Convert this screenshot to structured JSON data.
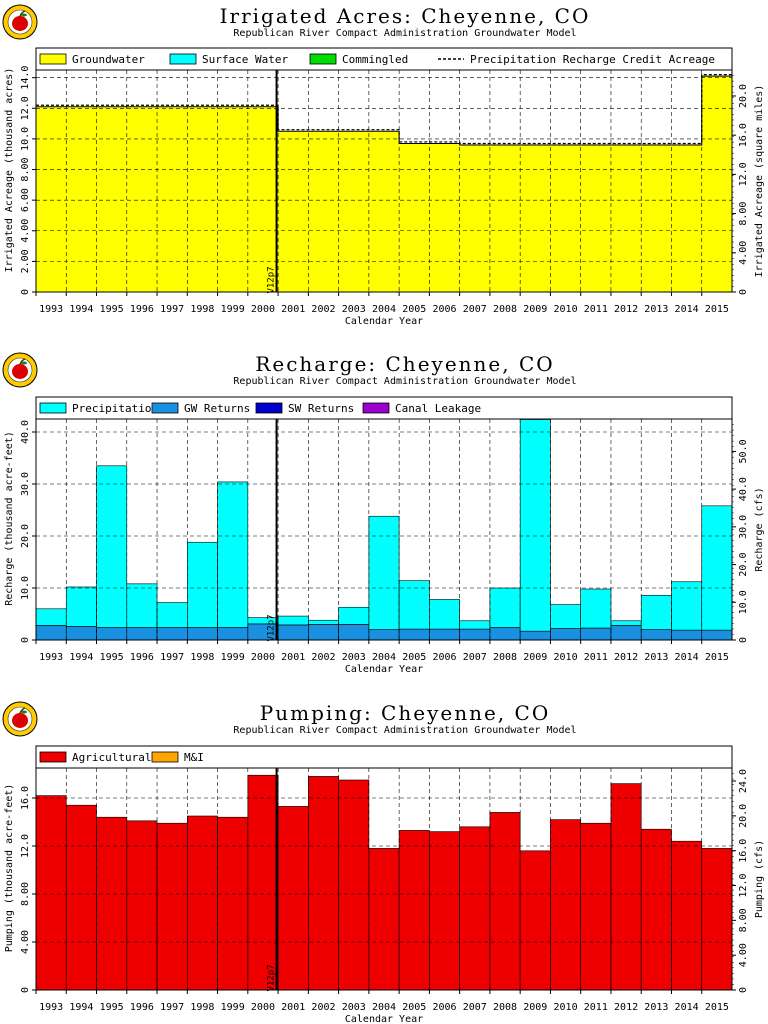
{
  "colors": {
    "groundwater": "#ffff00",
    "surface_water": "#00ffff",
    "commingled": "#00dd00",
    "precipitation": "#00ffff",
    "gw_returns": "#1a90e0",
    "sw_returns": "#0000cc",
    "canal_leakage": "#9900cc",
    "agricultural": "#ee0000",
    "mi": "#ffa500",
    "logo_ring": "#ffcc00",
    "logo_apple": "#dd0000"
  },
  "icons": [
    "apple-logo-icon"
  ],
  "chart_data": [
    {
      "type": "area",
      "title": "Irrigated Acres: Cheyenne, CO",
      "subtitle": "Republican River Compact Administration Groundwater Model",
      "xlabel": "Calendar Year",
      "ylabel": "Irrigated Acreage (thousand acres)",
      "ylabel_right": "Irrigated Acreage (square miles)",
      "categories": [
        "1993",
        "1994",
        "1995",
        "1996",
        "1997",
        "1998",
        "1999",
        "2000",
        "2001",
        "2002",
        "2003",
        "2004",
        "2005",
        "2006",
        "2007",
        "2008",
        "2009",
        "2010",
        "2011",
        "2012",
        "2013",
        "2014",
        "2015"
      ],
      "yticks": [
        "0",
        "2.00",
        "4.00",
        "6.00",
        "8.00",
        "10.0",
        "12.0",
        "14.0"
      ],
      "yticks_right": [
        "0",
        "4.00",
        "8.00",
        "12.0",
        "16.0",
        "20.0"
      ],
      "ylim": [
        0,
        14.5
      ],
      "marker": "V12p7",
      "legend": [
        "Groundwater",
        "Surface Water",
        "Commingled",
        "Precipitation Recharge Credit Acreage"
      ],
      "series": [
        {
          "name": "Groundwater",
          "values": [
            12.1,
            12.1,
            12.1,
            12.1,
            12.1,
            12.1,
            12.1,
            12.1,
            10.5,
            10.5,
            10.5,
            10.5,
            9.7,
            9.7,
            9.6,
            9.6,
            9.6,
            9.6,
            9.6,
            9.6,
            9.6,
            9.6,
            14.1
          ]
        },
        {
          "name": "Precipitation Recharge Credit Acreage",
          "values": [
            12.2,
            12.2,
            12.2,
            12.2,
            12.2,
            12.2,
            12.2,
            12.2,
            10.6,
            10.6,
            10.6,
            10.6,
            9.8,
            9.8,
            9.7,
            9.7,
            9.7,
            9.7,
            9.7,
            9.7,
            9.7,
            9.7,
            14.2
          ]
        }
      ]
    },
    {
      "type": "bar",
      "title": "Recharge: Cheyenne, CO",
      "subtitle": "Republican River Compact Administration Groundwater Model",
      "xlabel": "Calendar Year",
      "ylabel": "Recharge (thousand acre-feet)",
      "ylabel_right": "Recharge (cfs)",
      "categories": [
        "1993",
        "1994",
        "1995",
        "1996",
        "1997",
        "1998",
        "1999",
        "2000",
        "2001",
        "2002",
        "2003",
        "2004",
        "2005",
        "2006",
        "2007",
        "2008",
        "2009",
        "2010",
        "2011",
        "2012",
        "2013",
        "2014",
        "2015"
      ],
      "yticks": [
        "0",
        "10.0",
        "20.0",
        "30.0",
        "40.0"
      ],
      "yticks_right": [
        "0",
        "10.0",
        "20.0",
        "30.0",
        "40.0",
        "50.0"
      ],
      "ylim": [
        0,
        42.5
      ],
      "marker": "V12p7",
      "legend": [
        "Precipitation",
        "GW Returns",
        "SW Returns",
        "Canal Leakage"
      ],
      "series": [
        {
          "name": "GW Returns",
          "values": [
            2.8,
            2.6,
            2.4,
            2.4,
            2.4,
            2.4,
            2.4,
            3.1,
            2.9,
            3.0,
            3.0,
            2.0,
            2.1,
            2.1,
            2.1,
            2.4,
            1.7,
            2.2,
            2.3,
            2.8,
            2.0,
            1.9,
            1.9
          ]
        },
        {
          "name": "Precipitation",
          "values": [
            3.2,
            7.6,
            31.1,
            8.4,
            4.8,
            16.4,
            28.0,
            1.2,
            1.7,
            0.8,
            3.3,
            21.8,
            9.3,
            5.7,
            1.6,
            7.6,
            40.7,
            4.6,
            7.5,
            0.9,
            6.6,
            9.3,
            23.9
          ]
        },
        {
          "name": "SW Returns",
          "values": [
            0,
            0,
            0,
            0,
            0,
            0,
            0,
            0,
            0,
            0,
            0,
            0,
            0,
            0,
            0,
            0,
            0,
            0,
            0,
            0,
            0,
            0,
            0
          ]
        },
        {
          "name": "Canal Leakage",
          "values": [
            0,
            0,
            0,
            0,
            0,
            0,
            0,
            0,
            0,
            0,
            0,
            0,
            0,
            0,
            0,
            0,
            0,
            0,
            0,
            0,
            0,
            0,
            0
          ]
        }
      ]
    },
    {
      "type": "bar",
      "title": "Pumping: Cheyenne, CO",
      "subtitle": "Republican River Compact Administration Groundwater Model",
      "xlabel": "Calendar Year",
      "ylabel": "Pumping (thousand acre-feet)",
      "ylabel_right": "Pumping (cfs)",
      "categories": [
        "1993",
        "1994",
        "1995",
        "1996",
        "1997",
        "1998",
        "1999",
        "2000",
        "2001",
        "2002",
        "2003",
        "2004",
        "2005",
        "2006",
        "2007",
        "2008",
        "2009",
        "2010",
        "2011",
        "2012",
        "2013",
        "2014",
        "2015"
      ],
      "yticks": [
        "0",
        "4.00",
        "8.00",
        "12.0",
        "16.0"
      ],
      "yticks_right": [
        "0",
        "4.00",
        "8.00",
        "12.0",
        "16.0",
        "20.0",
        "24.0"
      ],
      "ylim": [
        0,
        18.5
      ],
      "marker": "V12p7",
      "legend": [
        "Agricultural",
        "M&I"
      ],
      "series": [
        {
          "name": "Agricultural",
          "values": [
            16.2,
            15.4,
            14.4,
            14.1,
            13.9,
            14.5,
            14.4,
            17.9,
            15.3,
            17.8,
            17.5,
            11.8,
            13.3,
            13.2,
            13.6,
            14.8,
            11.6,
            14.2,
            13.9,
            17.2,
            13.4,
            12.4,
            11.8
          ]
        },
        {
          "name": "M&I",
          "values": [
            0,
            0,
            0,
            0,
            0,
            0,
            0,
            0,
            0,
            0,
            0,
            0,
            0,
            0,
            0,
            0,
            0,
            0,
            0,
            0,
            0,
            0,
            0
          ]
        }
      ]
    }
  ]
}
